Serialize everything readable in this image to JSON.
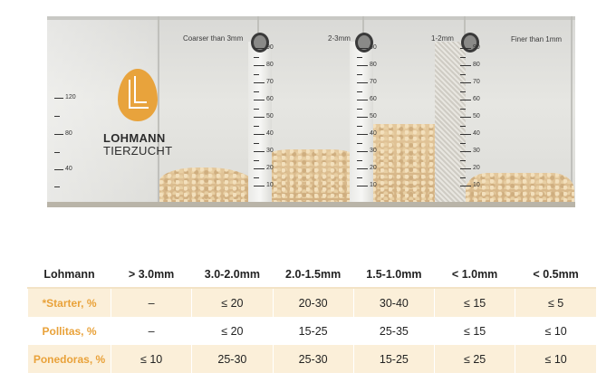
{
  "photo": {
    "compartments": [
      "Coarser than 3mm",
      "2-3mm",
      "1-2mm",
      "Finer than 1mm"
    ],
    "scale_left": [
      "120",
      "80",
      "40"
    ],
    "scale_tube": [
      "90",
      "80",
      "70",
      "60",
      "50",
      "40",
      "30",
      "20",
      "10"
    ],
    "brand_line1": "LOHMANN",
    "brand_line2": "TIERZUCHT",
    "brand_color": "#e8a33c"
  },
  "table": {
    "headers": [
      "Lohmann",
      "> 3.0mm",
      "3.0-2.0mm",
      "2.0-1.5mm",
      "1.5-1.0mm",
      "< 1.0mm",
      "< 0.5mm"
    ],
    "rows": [
      {
        "label": "*Starter, %",
        "values": [
          "–",
          "≤ 20",
          "20-30",
          "30-40",
          "≤ 15",
          "≤ 5"
        ]
      },
      {
        "label": "Pollitas, %",
        "values": [
          "–",
          "≤ 20",
          "15-25",
          "25-35",
          "≤ 15",
          "≤ 10"
        ]
      },
      {
        "label": "Ponedoras, %",
        "values": [
          "≤ 10",
          "25-30",
          "25-30",
          "15-25",
          "≤ 25",
          "≤ 10"
        ]
      }
    ],
    "accent_color": "#e9a23a",
    "stripe_color": "#fbefd9"
  }
}
